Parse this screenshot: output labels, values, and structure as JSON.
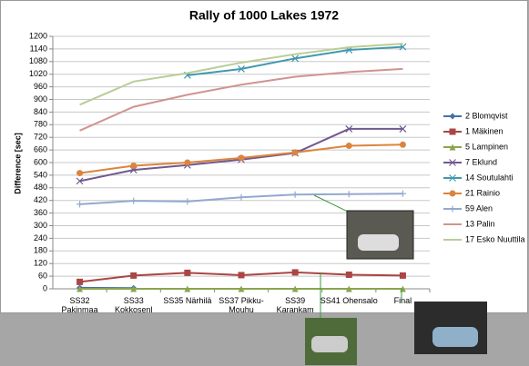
{
  "chart_data": {
    "type": "line",
    "title": "Rally of 1000 Lakes 1972",
    "y_label": "Difference [sec]",
    "categories": [
      "SS32 Pakinmaa",
      "SS33 Kokkosenl",
      "SS35 Närhilä",
      "SS37 Pikku-Mouhu",
      "SS39 Karankam",
      "SS41 Ohensalo",
      "Final"
    ],
    "ylim": [
      0,
      1200
    ],
    "yticks": [
      0,
      60,
      120,
      180,
      240,
      300,
      360,
      420,
      480,
      540,
      600,
      660,
      720,
      780,
      840,
      900,
      960,
      1020,
      1080,
      1140,
      1200
    ],
    "grid": true,
    "legend": "right",
    "series": [
      {
        "name": "2 Blomqvist",
        "color": "#4572a7",
        "marker": "diamond",
        "values": [
          5,
          3,
          null,
          null,
          null,
          null,
          null
        ]
      },
      {
        "name": "1 Mäkinen",
        "color": "#aa4643",
        "marker": "square",
        "values": [
          33,
          63,
          76,
          65,
          78,
          67,
          63
        ]
      },
      {
        "name": "5 Lampinen",
        "color": "#89a54e",
        "marker": "triangle",
        "values": [
          0,
          0,
          0,
          0,
          0,
          0,
          0
        ]
      },
      {
        "name": "7 Eklund",
        "color": "#71588f",
        "marker": "x",
        "values": [
          512,
          565,
          588,
          614,
          645,
          760,
          760
        ]
      },
      {
        "name": "14 Soutulahti",
        "color": "#4198af",
        "marker": "x",
        "values": [
          null,
          null,
          1015,
          1045,
          1095,
          1135,
          1150
        ]
      },
      {
        "name": "21 Rainio",
        "color": "#db843d",
        "marker": "circle",
        "values": [
          550,
          585,
          600,
          622,
          648,
          680,
          685
        ]
      },
      {
        "name": "59 Alen",
        "color": "#93a9cf",
        "marker": "plus",
        "values": [
          402,
          418,
          415,
          435,
          448,
          450,
          452
        ]
      },
      {
        "name": "13 Palin",
        "color": "#d19392",
        "marker": "none",
        "values": [
          752,
          865,
          922,
          970,
          1008,
          1030,
          1045
        ]
      },
      {
        "name": "17 Esko Nuuttila",
        "color": "#b9cd96",
        "marker": "none",
        "values": [
          875,
          985,
          1025,
          1075,
          1115,
          1148,
          1165
        ]
      }
    ]
  }
}
